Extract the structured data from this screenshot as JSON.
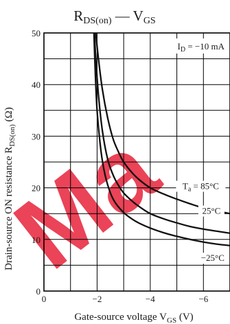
{
  "chart_data": {
    "type": "line",
    "title": "R DS(on) — V GS",
    "title_parts": {
      "main1": "R",
      "sub1": "DS(on)",
      "dash": " — ",
      "main2": "V",
      "sub2": "GS"
    },
    "ylabel_parts": {
      "main": "Drain-source ON resistance  R",
      "sub": "DS(on)",
      "unit": "  (Ω)"
    },
    "xlabel_parts": {
      "main": "Gate-source voltage  V",
      "sub": "GS",
      "unit": "  (V)"
    },
    "xlim": [
      0,
      -7
    ],
    "ylim": [
      0,
      50
    ],
    "x_ticks": [
      0,
      -2,
      -4,
      -6
    ],
    "x_tick_labels": [
      "0",
      "−2",
      "−4",
      "−6"
    ],
    "y_ticks": [
      0,
      10,
      20,
      30,
      40,
      50
    ],
    "y_tick_labels": [
      "0",
      "10",
      "20",
      "30",
      "40",
      "50"
    ],
    "x_grid_step": 1,
    "y_grid_step": 5,
    "grid": true,
    "condition": {
      "main": "I",
      "sub": "D",
      "rest": " = −10 mA"
    },
    "series": [
      {
        "name": "Ta = 85°C",
        "label_parts": {
          "main": "T",
          "sub": "a",
          "rest": " = 85°C"
        },
        "x": [
          -1.95,
          -2.05,
          -2.2,
          -2.4,
          -2.6,
          -2.8,
          -3.0,
          -3.3,
          -3.6,
          -4.0,
          -4.5,
          -5.0,
          -5.5,
          -6.0,
          -6.5,
          -7.0
        ],
        "y": [
          50,
          45,
          39,
          33.5,
          29.5,
          27,
          25,
          23,
          21.5,
          20,
          18.8,
          17.8,
          16.9,
          16.1,
          15.5,
          15
        ]
      },
      {
        "name": "25°C",
        "label_parts": {
          "main": "25°C",
          "sub": "",
          "rest": ""
        },
        "x": [
          -1.9,
          -1.95,
          -2.05,
          -2.2,
          -2.4,
          -2.6,
          -2.8,
          -3.0,
          -3.3,
          -3.6,
          -4.0,
          -4.5,
          -5.0,
          -5.5,
          -6.0,
          -6.5,
          -7.0
        ],
        "y": [
          50,
          45,
          38,
          31,
          25.5,
          22.5,
          20.5,
          19,
          17.5,
          16.3,
          15,
          14,
          13.2,
          12.5,
          12,
          11.6,
          11.2
        ]
      },
      {
        "name": "−25°C",
        "label_parts": {
          "main": "−25°C",
          "sub": "",
          "rest": ""
        },
        "x": [
          -1.88,
          -1.92,
          -2.0,
          -2.15,
          -2.3,
          -2.5,
          -2.7,
          -3.0,
          -3.3,
          -3.6,
          -4.0,
          -4.5,
          -5.0,
          -5.5,
          -6.0,
          -6.5,
          -7.0
        ],
        "y": [
          50,
          44,
          35,
          27,
          22.5,
          19,
          17,
          15.2,
          14,
          13.1,
          12.2,
          11.3,
          10.6,
          10,
          9.5,
          9.1,
          8.8
        ]
      }
    ]
  }
}
